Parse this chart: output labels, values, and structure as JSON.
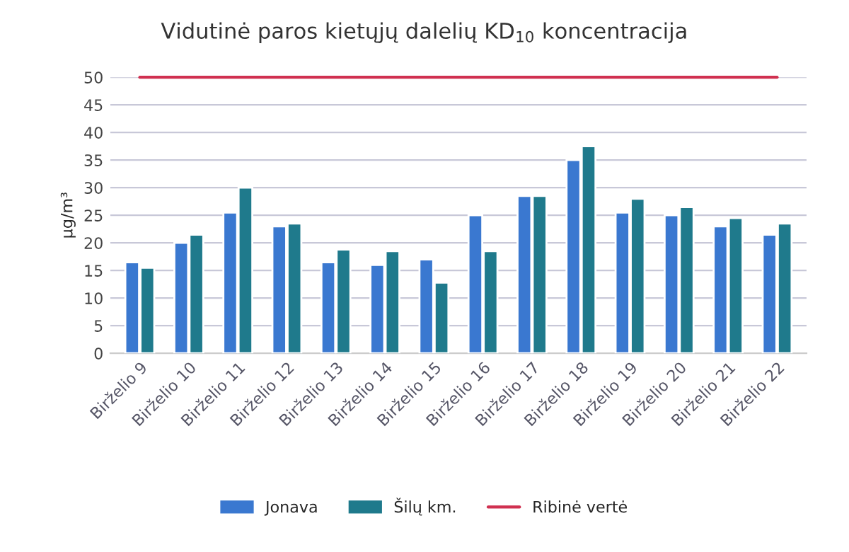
{
  "chart_data": {
    "type": "bar",
    "title": "Vidutinė paros kietųjų dalelių KD$_{10}$ koncentracija",
    "ylabel": "µg/m³",
    "categories": [
      "Birželio 9",
      "Birželio 10",
      "Birželio 11",
      "Birželio 12",
      "Birželio 13",
      "Birželio 14",
      "Birželio 15",
      "Birželio 16",
      "Birželio 17",
      "Birželio 18",
      "Birželio 19",
      "Birželio 20",
      "Birželio 21",
      "Birželio 22"
    ],
    "series": [
      {
        "name": "Jonava",
        "color": "#3a78d0",
        "values": [
          16.5,
          20,
          25.5,
          23,
          16.5,
          16,
          17,
          25,
          28.5,
          35,
          25.5,
          25,
          23,
          21.5
        ]
      },
      {
        "name": "Šilų km.",
        "color": "#1f7a8c",
        "values": [
          15.5,
          21.5,
          30,
          23.5,
          18.8,
          18.5,
          12.8,
          18.5,
          28.5,
          37.5,
          28,
          26.5,
          24.5,
          23.5
        ]
      },
      {
        "name": "Ribinė vertė",
        "type": "line",
        "color": "#d03050",
        "values": [
          50,
          50,
          50,
          50,
          50,
          50,
          50,
          50,
          50,
          50,
          50,
          50,
          50,
          50
        ]
      }
    ],
    "ylim": [
      0,
      50
    ],
    "yticks": [
      0,
      5,
      10,
      15,
      20,
      25,
      30,
      35,
      40,
      45,
      50
    ],
    "grid": "y",
    "legend": "bottom"
  }
}
